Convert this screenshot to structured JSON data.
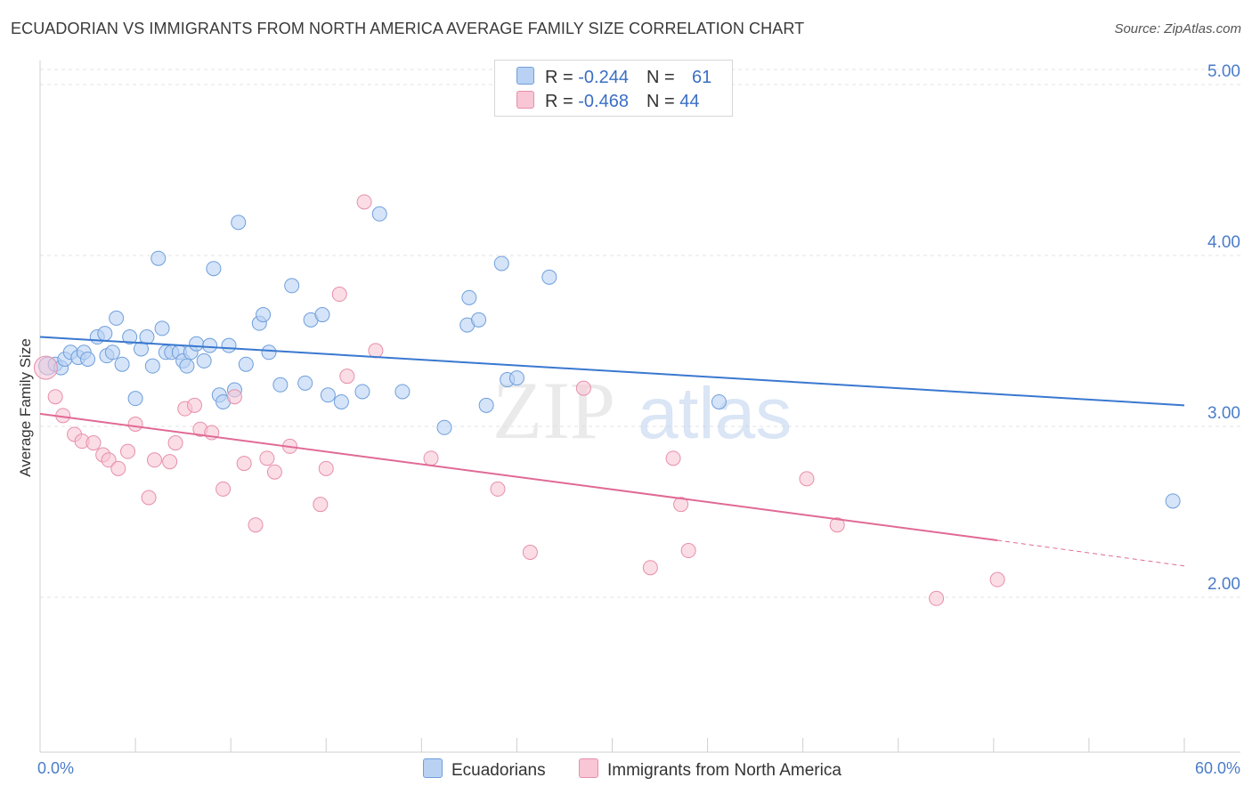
{
  "title": "ECUADORIAN VS IMMIGRANTS FROM NORTH AMERICA AVERAGE FAMILY SIZE CORRELATION CHART",
  "source": "Source: ZipAtlas.com",
  "watermark": {
    "zip": "ZIP",
    "atlas": "atlas"
  },
  "legend": {
    "series1": {
      "r_label": "R = ",
      "r_value": "-0.244",
      "n_label": "N = ",
      "n_value": "61"
    },
    "series2": {
      "r_label": "R = ",
      "r_value": "-0.468",
      "n_label": "N = ",
      "n_value": "44"
    }
  },
  "colors": {
    "blue_fill": "#b9d2f3",
    "blue_stroke": "#6f9fdc",
    "blue_line": "#3a78d0",
    "pink_fill": "#f8c6d5",
    "pink_stroke": "#e78fab",
    "pink_line": "#e06a95",
    "grid": "#e3e3e3",
    "axis_text": "#4a7cc9"
  },
  "chart_data": {
    "type": "scatter",
    "title": "ECUADORIAN VS IMMIGRANTS FROM NORTH AMERICA AVERAGE FAMILY SIZE CORRELATION CHART",
    "xlabel": "",
    "ylabel": "Average Family Size",
    "xlim": [
      0,
      60
    ],
    "ylim": [
      1.0,
      5.05
    ],
    "x_tick_labels": [
      "0.0%",
      "60.0%"
    ],
    "y_ticks": [
      2.0,
      3.0,
      4.0,
      5.0
    ],
    "y_tick_labels": [
      "2.00",
      "3.00",
      "4.00",
      "5.00"
    ],
    "grid": true,
    "legend_position": "top-center",
    "series": [
      {
        "name": "Ecuadorians",
        "color": "#6f9fdc",
        "trend": {
          "x": [
            0,
            60
          ],
          "y": [
            3.44,
            3.04
          ]
        },
        "points": [
          [
            0.4,
            3.27
          ],
          [
            0.8,
            3.28
          ],
          [
            1.1,
            3.26
          ],
          [
            1.3,
            3.31
          ],
          [
            1.6,
            3.35
          ],
          [
            2.0,
            3.32
          ],
          [
            2.3,
            3.35
          ],
          [
            2.5,
            3.31
          ],
          [
            3.0,
            3.44
          ],
          [
            3.4,
            3.46
          ],
          [
            3.5,
            3.33
          ],
          [
            3.8,
            3.35
          ],
          [
            4.0,
            3.55
          ],
          [
            4.3,
            3.28
          ],
          [
            4.7,
            3.44
          ],
          [
            5.0,
            3.08
          ],
          [
            5.3,
            3.37
          ],
          [
            5.6,
            3.44
          ],
          [
            5.9,
            3.27
          ],
          [
            6.2,
            3.9
          ],
          [
            6.4,
            3.49
          ],
          [
            6.6,
            3.35
          ],
          [
            6.9,
            3.35
          ],
          [
            7.3,
            3.35
          ],
          [
            7.5,
            3.3
          ],
          [
            7.7,
            3.27
          ],
          [
            7.9,
            3.35
          ],
          [
            8.2,
            3.4
          ],
          [
            8.6,
            3.3
          ],
          [
            8.9,
            3.39
          ],
          [
            9.1,
            3.84
          ],
          [
            9.4,
            3.1
          ],
          [
            9.6,
            3.06
          ],
          [
            9.9,
            3.39
          ],
          [
            10.2,
            3.13
          ],
          [
            10.4,
            4.11
          ],
          [
            10.8,
            3.28
          ],
          [
            11.5,
            3.52
          ],
          [
            11.7,
            3.57
          ],
          [
            12.0,
            3.35
          ],
          [
            12.6,
            3.16
          ],
          [
            13.2,
            3.74
          ],
          [
            13.9,
            3.17
          ],
          [
            14.2,
            3.54
          ],
          [
            14.8,
            3.57
          ],
          [
            15.1,
            3.1
          ],
          [
            15.8,
            3.06
          ],
          [
            16.9,
            3.12
          ],
          [
            17.8,
            4.16
          ],
          [
            19.0,
            3.12
          ],
          [
            21.2,
            2.91
          ],
          [
            22.4,
            3.51
          ],
          [
            22.5,
            3.67
          ],
          [
            23.0,
            3.54
          ],
          [
            23.4,
            3.04
          ],
          [
            24.2,
            3.87
          ],
          [
            24.5,
            3.19
          ],
          [
            25.0,
            3.2
          ],
          [
            26.7,
            3.79
          ],
          [
            35.6,
            3.06
          ],
          [
            59.4,
            2.48
          ]
        ]
      },
      {
        "name": "Immigrants from North America",
        "color": "#e78fab",
        "trend": {
          "x": [
            0,
            50.2
          ],
          "y": [
            2.99,
            2.25
          ],
          "dash_x": [
            50.2,
            60
          ],
          "dash_y": [
            2.25,
            2.1
          ]
        },
        "points": [
          [
            0.3,
            3.26
          ],
          [
            0.8,
            3.09
          ],
          [
            1.2,
            2.98
          ],
          [
            1.8,
            2.87
          ],
          [
            2.2,
            2.83
          ],
          [
            2.8,
            2.82
          ],
          [
            3.3,
            2.75
          ],
          [
            3.6,
            2.72
          ],
          [
            4.1,
            2.67
          ],
          [
            4.6,
            2.77
          ],
          [
            5.0,
            2.93
          ],
          [
            5.7,
            2.5
          ],
          [
            6.0,
            2.72
          ],
          [
            6.8,
            2.71
          ],
          [
            7.1,
            2.82
          ],
          [
            7.6,
            3.02
          ],
          [
            8.1,
            3.04
          ],
          [
            8.4,
            2.9
          ],
          [
            9.0,
            2.88
          ],
          [
            9.6,
            2.55
          ],
          [
            10.2,
            3.09
          ],
          [
            10.7,
            2.7
          ],
          [
            11.3,
            2.34
          ],
          [
            11.9,
            2.73
          ],
          [
            12.3,
            2.65
          ],
          [
            13.1,
            2.8
          ],
          [
            14.7,
            2.46
          ],
          [
            15.0,
            2.67
          ],
          [
            15.7,
            3.69
          ],
          [
            16.1,
            3.21
          ],
          [
            17.0,
            4.23
          ],
          [
            17.6,
            3.36
          ],
          [
            20.5,
            2.73
          ],
          [
            24.0,
            2.55
          ],
          [
            25.7,
            2.18
          ],
          [
            28.5,
            3.14
          ],
          [
            32.0,
            2.09
          ],
          [
            33.2,
            2.73
          ],
          [
            33.6,
            2.46
          ],
          [
            34.0,
            2.19
          ],
          [
            40.2,
            2.61
          ],
          [
            41.8,
            2.34
          ],
          [
            47.0,
            1.91
          ],
          [
            50.2,
            2.02
          ]
        ]
      }
    ]
  }
}
